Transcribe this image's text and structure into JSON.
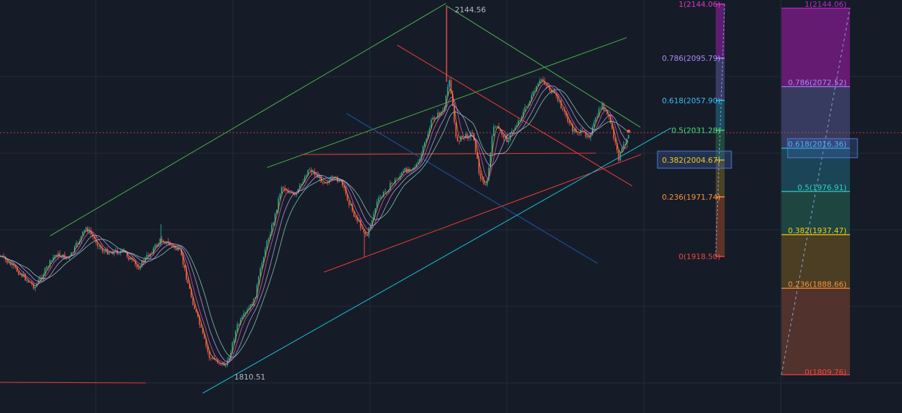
{
  "chart_data": {
    "type": "candlestick",
    "title": "",
    "xlabel": "",
    "ylabel": "",
    "grid": true,
    "colors": {
      "background": "#161c27",
      "grid": "#222b38",
      "up": "#26a69a",
      "down": "#ef5350",
      "ma_fast": "#f5a623",
      "ma_mid": "#e35bd4",
      "ma_slow": "#b9a7f2",
      "ma_extra": "#8ad1c2",
      "green_line": "#46a84a",
      "red_line": "#e53935",
      "blue_line": "#1e4fa8",
      "cyan_line": "#18b8d4",
      "current_price_dotted": "#c0434a"
    },
    "price_labels": {
      "high": "2144.56",
      "low": "1810.51"
    },
    "fib_left": {
      "levels": [
        {
          "ratio": "1",
          "label": "1(2144.06)",
          "price": 2144.06,
          "color": "#d638c9"
        },
        {
          "ratio": "0.786",
          "label": "0.786(2095.79)",
          "price": 2095.79,
          "color": "#a78bfa"
        },
        {
          "ratio": "0.618",
          "label": "0.618(2057.90)",
          "price": 2057.9,
          "color": "#38bdf8"
        },
        {
          "ratio": "0.5",
          "label": "0.5(2031.28)",
          "price": 2031.28,
          "color": "#4ade80"
        },
        {
          "ratio": "0.382",
          "label": "0.382(2004.67)",
          "price": 2004.67,
          "color": "#facc15",
          "highlighted": true
        },
        {
          "ratio": "0.236",
          "label": "0.236(1971.74)",
          "price": 1971.74,
          "color": "#fb923c"
        },
        {
          "ratio": "0",
          "label": "0(1918.50)",
          "price": 1918.5,
          "color": "#ef4444"
        }
      ]
    },
    "fib_right": {
      "levels": [
        {
          "ratio": "1",
          "label": "1(2144.06)",
          "price": 2144.06,
          "color": "#c026d3",
          "band": "#6d1c7a"
        },
        {
          "ratio": "0.786",
          "label": "0.786(2072.52)",
          "price": 2072.52,
          "color": "#a78bfa",
          "band": "#3a3f66"
        },
        {
          "ratio": "0.618",
          "label": "0.618(2016.36)",
          "price": 2016.36,
          "color": "#38bdf8",
          "band": "#1c4a5c",
          "highlighted": true
        },
        {
          "ratio": "0.5",
          "label": "0.5(1976.91)",
          "price": 1976.91,
          "color": "#2dd4bf",
          "band": "#1f4a44"
        },
        {
          "ratio": "0.382",
          "label": "0.382(1937.47)",
          "price": 1937.47,
          "color": "#facc15",
          "band": "#514323"
        },
        {
          "ratio": "0.236",
          "label": "0.236(1888.66)",
          "price": 1888.66,
          "color": "#fb923c",
          "band": "#58352d"
        },
        {
          "ratio": "0",
          "label": "0(1809.76)",
          "price": 1809.76,
          "color": "#ef4444",
          "band": "#58352d"
        }
      ]
    }
  }
}
